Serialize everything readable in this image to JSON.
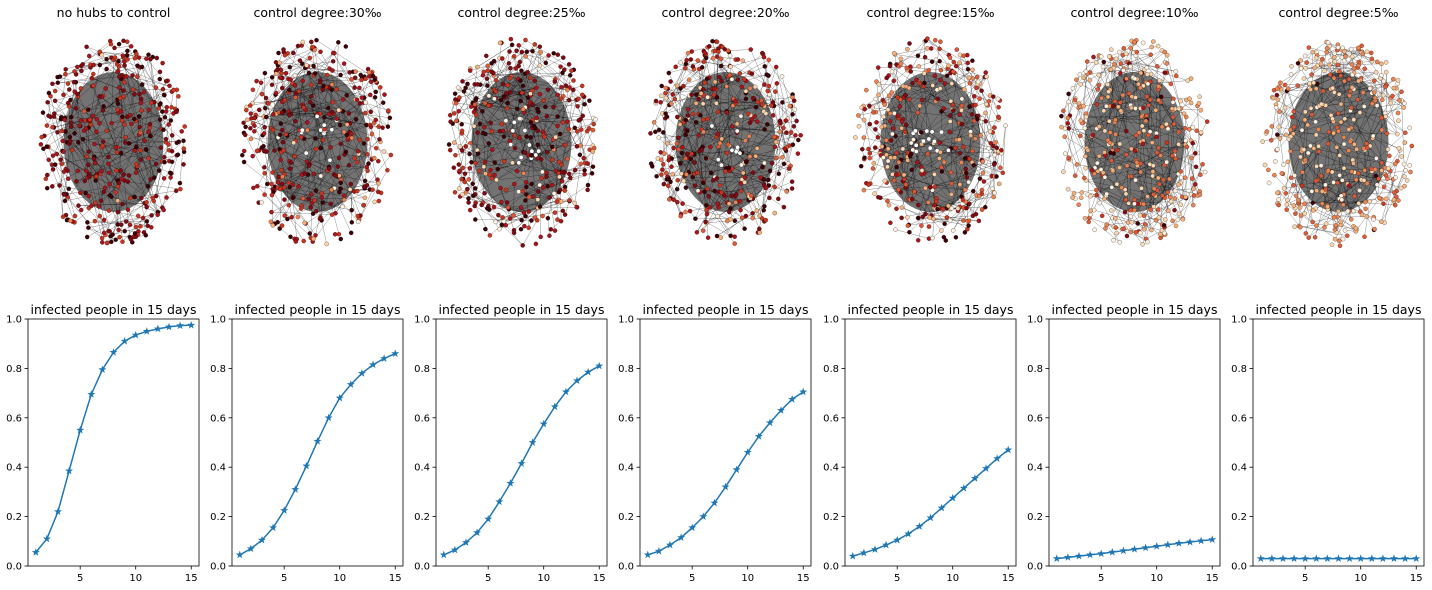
{
  "colors": {
    "line": "#1f77b4",
    "edge": "#000000",
    "node_palette": [
      "#3b0206",
      "#7f0a12",
      "#a8151a",
      "#c8361f",
      "#de5a35",
      "#ec8452",
      "#f6b07a",
      "#fbd7b0",
      "#fff2e0",
      "#ffffff"
    ]
  },
  "networks": [
    {
      "title": "no hubs to control"
    },
    {
      "title": "control degree:30‰"
    },
    {
      "title": "control degree:25‰"
    },
    {
      "title": "control degree:20‰"
    },
    {
      "title": "control degree:15‰"
    },
    {
      "title": "control degree:10‰"
    },
    {
      "title": "control degree:5‰"
    }
  ],
  "chart_data": [
    {
      "type": "line",
      "title": "infected people in 15 days",
      "xlabel": "",
      "ylabel": "",
      "xlim": [
        0.3,
        15.7
      ],
      "ylim": [
        0,
        1.0
      ],
      "xticks": [
        5,
        10,
        15
      ],
      "yticks": [
        0.0,
        0.2,
        0.4,
        0.6,
        0.8,
        1.0
      ],
      "marker": "star",
      "x": [
        1,
        2,
        3,
        4,
        5,
        6,
        7,
        8,
        9,
        10,
        11,
        12,
        13,
        14,
        15
      ],
      "series": [
        {
          "values": [
            0.055,
            0.11,
            0.22,
            0.385,
            0.55,
            0.695,
            0.795,
            0.865,
            0.91,
            0.935,
            0.95,
            0.96,
            0.968,
            0.973,
            0.975
          ]
        }
      ]
    },
    {
      "type": "line",
      "title": "infected people in 15 days",
      "xlabel": "",
      "ylabel": "",
      "xlim": [
        0.3,
        15.7
      ],
      "ylim": [
        0,
        1.0
      ],
      "xticks": [
        5,
        10,
        15
      ],
      "yticks": [
        0.0,
        0.2,
        0.4,
        0.6,
        0.8,
        1.0
      ],
      "marker": "star",
      "x": [
        1,
        2,
        3,
        4,
        5,
        6,
        7,
        8,
        9,
        10,
        11,
        12,
        13,
        14,
        15
      ],
      "series": [
        {
          "values": [
            0.045,
            0.07,
            0.105,
            0.155,
            0.225,
            0.31,
            0.405,
            0.505,
            0.6,
            0.68,
            0.735,
            0.78,
            0.815,
            0.84,
            0.86
          ]
        }
      ]
    },
    {
      "type": "line",
      "title": "infected people in 15 days",
      "xlabel": "",
      "ylabel": "",
      "xlim": [
        0.3,
        15.7
      ],
      "ylim": [
        0,
        1.0
      ],
      "xticks": [
        5,
        10,
        15
      ],
      "yticks": [
        0.0,
        0.2,
        0.4,
        0.6,
        0.8,
        1.0
      ],
      "marker": "star",
      "x": [
        1,
        2,
        3,
        4,
        5,
        6,
        7,
        8,
        9,
        10,
        11,
        12,
        13,
        14,
        15
      ],
      "series": [
        {
          "values": [
            0.045,
            0.065,
            0.095,
            0.135,
            0.19,
            0.26,
            0.335,
            0.415,
            0.5,
            0.575,
            0.645,
            0.705,
            0.75,
            0.785,
            0.81
          ]
        }
      ]
    },
    {
      "type": "line",
      "title": "infected people in 15 days",
      "xlabel": "",
      "ylabel": "",
      "xlim": [
        0.3,
        15.7
      ],
      "ylim": [
        0,
        1.0
      ],
      "xticks": [
        5,
        10,
        15
      ],
      "yticks": [
        0.0,
        0.2,
        0.4,
        0.6,
        0.8,
        1.0
      ],
      "marker": "star",
      "x": [
        1,
        2,
        3,
        4,
        5,
        6,
        7,
        8,
        9,
        10,
        11,
        12,
        13,
        14,
        15
      ],
      "series": [
        {
          "values": [
            0.045,
            0.06,
            0.085,
            0.115,
            0.155,
            0.2,
            0.255,
            0.32,
            0.39,
            0.46,
            0.525,
            0.58,
            0.63,
            0.675,
            0.705
          ]
        }
      ]
    },
    {
      "type": "line",
      "title": "infected people in 15 days",
      "xlabel": "",
      "ylabel": "",
      "xlim": [
        0.3,
        15.7
      ],
      "ylim": [
        0,
        1.0
      ],
      "xticks": [
        5,
        10,
        15
      ],
      "yticks": [
        0.0,
        0.2,
        0.4,
        0.6,
        0.8,
        1.0
      ],
      "marker": "star",
      "x": [
        1,
        2,
        3,
        4,
        5,
        6,
        7,
        8,
        9,
        10,
        11,
        12,
        13,
        14,
        15
      ],
      "series": [
        {
          "values": [
            0.04,
            0.053,
            0.067,
            0.085,
            0.105,
            0.13,
            0.16,
            0.195,
            0.235,
            0.275,
            0.315,
            0.355,
            0.395,
            0.435,
            0.47
          ]
        }
      ]
    },
    {
      "type": "line",
      "title": "infected people in 15 days",
      "xlabel": "",
      "ylabel": "",
      "xlim": [
        0.3,
        15.7
      ],
      "ylim": [
        0,
        1.0
      ],
      "xticks": [
        5,
        10,
        15
      ],
      "yticks": [
        0.0,
        0.2,
        0.4,
        0.6,
        0.8,
        1.0
      ],
      "marker": "star",
      "x": [
        1,
        2,
        3,
        4,
        5,
        6,
        7,
        8,
        9,
        10,
        11,
        12,
        13,
        14,
        15
      ],
      "series": [
        {
          "values": [
            0.03,
            0.035,
            0.04,
            0.045,
            0.05,
            0.056,
            0.062,
            0.068,
            0.074,
            0.08,
            0.086,
            0.092,
            0.097,
            0.102,
            0.107
          ]
        }
      ]
    },
    {
      "type": "line",
      "title": "infected people in 15 days",
      "xlabel": "",
      "ylabel": "",
      "xlim": [
        0.3,
        15.7
      ],
      "ylim": [
        0,
        1.0
      ],
      "xticks": [
        5,
        10,
        15
      ],
      "yticks": [
        0.0,
        0.2,
        0.4,
        0.6,
        0.8,
        1.0
      ],
      "marker": "star",
      "x": [
        1,
        2,
        3,
        4,
        5,
        6,
        7,
        8,
        9,
        10,
        11,
        12,
        13,
        14,
        15
      ],
      "series": [
        {
          "values": [
            0.03,
            0.03,
            0.03,
            0.03,
            0.03,
            0.03,
            0.03,
            0.03,
            0.03,
            0.03,
            0.03,
            0.03,
            0.03,
            0.03,
            0.03
          ]
        }
      ]
    }
  ]
}
